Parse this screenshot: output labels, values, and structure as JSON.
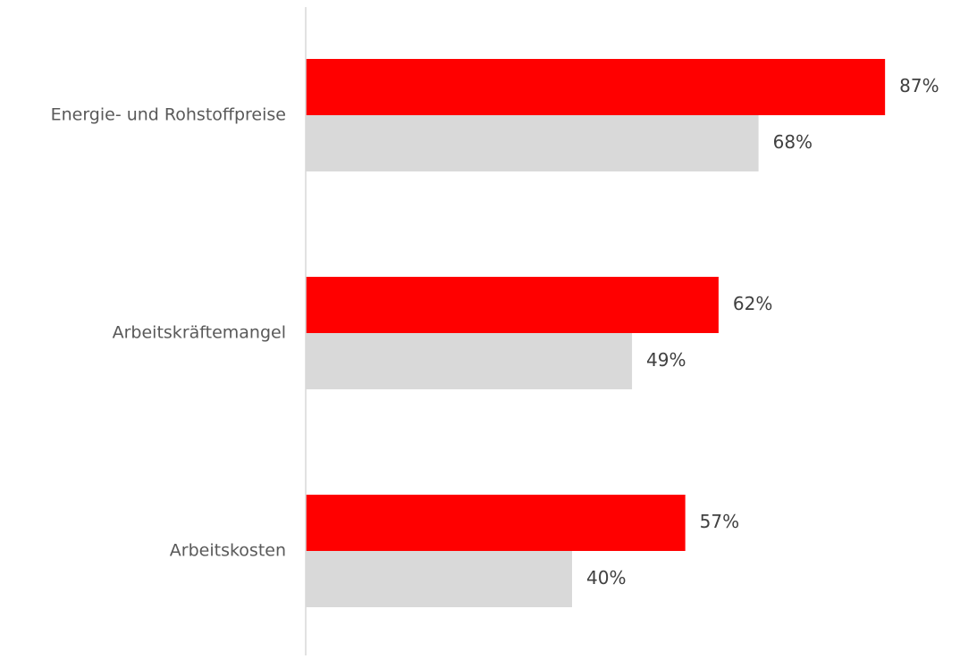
{
  "chart_data": {
    "type": "bar",
    "orientation": "horizontal",
    "categories": [
      "Energie- und Rohstoffpreise",
      "Arbeitskräftemangel",
      "Arbeitskosten"
    ],
    "series": [
      {
        "values": [
          87,
          62,
          57
        ],
        "color": "#ff0000"
      },
      {
        "values": [
          68,
          49,
          40
        ],
        "color": "#d9d9d9"
      }
    ],
    "value_suffix": "%",
    "xlim": [
      0,
      100
    ],
    "grid": false,
    "legend": "none",
    "title": "",
    "xlabel": "",
    "ylabel": ""
  }
}
